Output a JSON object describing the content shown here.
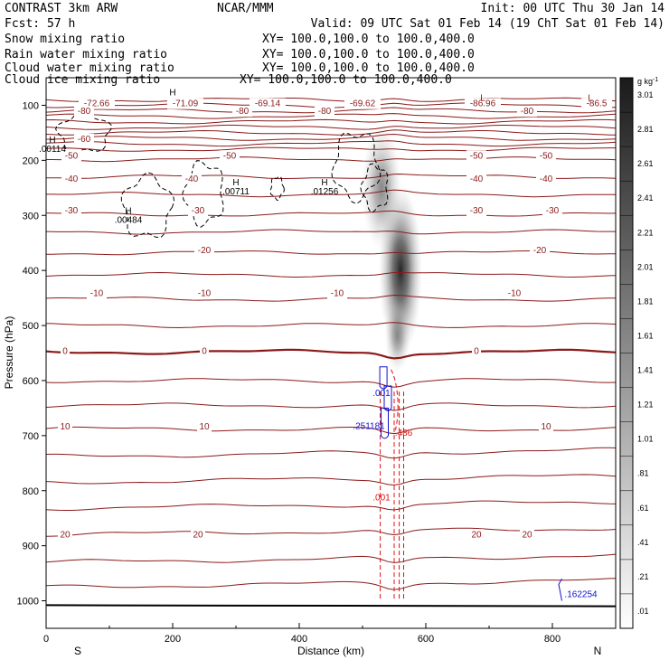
{
  "header": {
    "left_line1": "CONTRAST  3km ARW",
    "center_line1": "NCAR/MMM",
    "right_line1": "Init: 00 UTC Thu 30 Jan 14",
    "left_line2": "Fcst:   57 h",
    "right_line2": "Valid: 09 UTC Sat 01 Feb 14 (19 ChT Sat 01 Feb 14)"
  },
  "fields": [
    {
      "name": "Snow mixing ratio",
      "xy": "XY= 100.0,100.0 to 100.0,400.0",
      "color": "#000000"
    },
    {
      "name": "Rain water mixing ratio",
      "xy": "XY= 100.0,100.0 to 100.0,400.0",
      "color": "#e01010"
    },
    {
      "name": "Cloud water mixing ratio",
      "xy": "XY= 100.0,100.0 to 100.0,400.0",
      "color": "#1010d0"
    },
    {
      "name": "Cloud ice mixing ratio",
      "xy": "XY= 100.0,100.0 to 100.0,400.0",
      "color": "#000000"
    }
  ],
  "chart_data": {
    "type": "cross-section contour",
    "xlabel": "Distance (km)",
    "ylabel": "Pressure (hPa)",
    "xlim": [
      0,
      900
    ],
    "ylim": [
      1050,
      50
    ],
    "x_ticks": [
      0,
      200,
      400,
      600,
      800
    ],
    "y_ticks": [
      100,
      200,
      300,
      400,
      500,
      600,
      700,
      800,
      900,
      1000
    ],
    "end_labels": {
      "left": "S",
      "right": "N"
    },
    "temperature_contour_color": "#8b1a1a",
    "temperature_contour_labels": [
      {
        "x": 60,
        "p": 160,
        "value": "-60"
      },
      {
        "x": 40,
        "p": 190,
        "value": "-50"
      },
      {
        "x": 290,
        "p": 190,
        "value": "-50"
      },
      {
        "x": 680,
        "p": 190,
        "value": "-50"
      },
      {
        "x": 790,
        "p": 190,
        "value": "-50"
      },
      {
        "x": 40,
        "p": 232,
        "value": "-40"
      },
      {
        "x": 230,
        "p": 232,
        "value": "-40"
      },
      {
        "x": 680,
        "p": 232,
        "value": "-40"
      },
      {
        "x": 790,
        "p": 232,
        "value": "-40"
      },
      {
        "x": 40,
        "p": 290,
        "value": "-30"
      },
      {
        "x": 240,
        "p": 290,
        "value": "-30"
      },
      {
        "x": 680,
        "p": 290,
        "value": "-30"
      },
      {
        "x": 800,
        "p": 290,
        "value": "-30"
      },
      {
        "x": 250,
        "p": 362,
        "value": "-20"
      },
      {
        "x": 780,
        "p": 362,
        "value": "-20"
      },
      {
        "x": 80,
        "p": 440,
        "value": "-10"
      },
      {
        "x": 250,
        "p": 440,
        "value": "-10"
      },
      {
        "x": 460,
        "p": 440,
        "value": "-10"
      },
      {
        "x": 740,
        "p": 440,
        "value": "-10"
      },
      {
        "x": 30,
        "p": 545,
        "value": "0"
      },
      {
        "x": 250,
        "p": 545,
        "value": "0"
      },
      {
        "x": 680,
        "p": 545,
        "value": "0"
      },
      {
        "x": 30,
        "p": 682,
        "value": "10"
      },
      {
        "x": 250,
        "p": 682,
        "value": "10"
      },
      {
        "x": 790,
        "p": 682,
        "value": "10"
      },
      {
        "x": 30,
        "p": 878,
        "value": "20"
      },
      {
        "x": 240,
        "p": 878,
        "value": "20"
      },
      {
        "x": 680,
        "p": 878,
        "value": "20"
      },
      {
        "x": 760,
        "p": 878,
        "value": "20"
      }
    ],
    "temperature_top_labels": [
      {
        "x": 80,
        "value": "-72.66"
      },
      {
        "x": 220,
        "value": "-71.09"
      },
      {
        "x": 350,
        "value": "-69.14"
      },
      {
        "x": 500,
        "value": "-69.62"
      },
      {
        "x": 690,
        "value": "-86.96"
      },
      {
        "x": 870,
        "value": "-86.5"
      }
    ],
    "top_row2_labels": [
      {
        "x": 60,
        "value": "-80"
      },
      {
        "x": 310,
        "value": "-80"
      },
      {
        "x": 440,
        "value": "-80"
      },
      {
        "x": 760,
        "value": "-80"
      }
    ],
    "extrema_labels": [
      {
        "x": 200,
        "p": 82,
        "mark": "H",
        "value": ""
      },
      {
        "x": 690,
        "p": 92,
        "mark": "L",
        "value": ""
      },
      {
        "x": 860,
        "p": 92,
        "mark": "L",
        "value": ""
      },
      {
        "x": 10,
        "p": 168,
        "mark": "H",
        "value": ".00114"
      },
      {
        "x": 130,
        "p": 297,
        "mark": "H",
        "value": ".00484"
      },
      {
        "x": 300,
        "p": 245,
        "mark": "H",
        "value": ".00711"
      },
      {
        "x": 440,
        "p": 245,
        "mark": "H",
        "value": ".01256"
      }
    ],
    "cloud_water_labels": [
      {
        "x": 530,
        "p": 628,
        "value": ".001"
      },
      {
        "x": 510,
        "p": 688,
        "value": ".251181"
      },
      {
        "x": 845,
        "p": 993,
        "value": ".162254"
      }
    ],
    "rain_labels": [
      {
        "x": 565,
        "p": 700,
        "value": ".486"
      },
      {
        "x": 530,
        "p": 818,
        "value": ".001"
      }
    ],
    "colorbar": {
      "unit": "g kg",
      "unit_exp": "-1",
      "labels": [
        "3.01",
        "2.81",
        "2.61",
        "2.41",
        "2.21",
        "2.01",
        "1.81",
        "1.61",
        "1.41",
        "1.21",
        "1.01",
        ".81",
        ".61",
        ".41",
        ".21",
        ".01"
      ],
      "max": 3.01,
      "min": 0.01
    },
    "snow_peak": {
      "x": 560,
      "p": 400,
      "max": 2.3
    }
  }
}
